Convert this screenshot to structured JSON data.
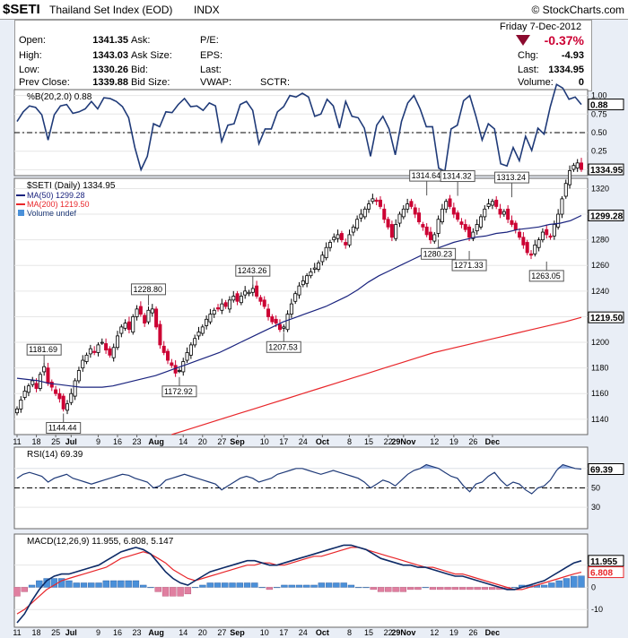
{
  "header": {
    "symbol": "$SETI",
    "name": "Thailand Set Index (EOD)",
    "exchange": "INDX",
    "watermark": "© StockCharts.com"
  },
  "quote": {
    "date": "Friday  7-Dec-2012",
    "pct_change": "-0.37%",
    "chg_label": "Chg:",
    "chg_value": "-4.93",
    "last_label": "Last:",
    "last_value": "1334.95",
    "volume_label": "Volume:",
    "volume_value": "0",
    "open_label": "Open:",
    "open_value": "1341.35",
    "high_label": "High:",
    "high_value": "1343.03",
    "low_label": "Low:",
    "low_value": "1330.26",
    "prev_label": "Prev Close:",
    "prev_value": "1339.88",
    "ask_label": "Ask:",
    "asksize_label": "Ask Size:",
    "bid_label": "Bid:",
    "bidsize_label": "Bid Size:",
    "pe_label": "P/E:",
    "eps_label": "EPS:",
    "last2_label": "Last:",
    "vwap_label": "VWAP:",
    "sctr_label": "SCTR:"
  },
  "colors": {
    "up": "#000000",
    "down": "#cc0033",
    "ma50": "#1a237e",
    "ma200": "#e8262a",
    "line": "#1f3a78",
    "bar": "#4a90d9",
    "negbar": "#e07fa0",
    "grid": "#e6e6e6"
  },
  "chart_data": [
    {
      "type": "line",
      "title": "%B(20,2.0) 0.88",
      "y_ticks": [
        "1.00",
        "0.75",
        "0.50",
        "0.25",
        "0.00"
      ],
      "tick_values": [
        1.0,
        0.75,
        0.5,
        0.25,
        0.0
      ],
      "last_label": "0.88",
      "ylim": [
        -0.08,
        1.08
      ],
      "series": [
        {
          "values": [
            0.65,
            0.78,
            0.86,
            0.84,
            0.74,
            0.4,
            0.74,
            0.86,
            0.88,
            0.76,
            0.78,
            0.82,
            0.92,
            0.82,
            0.97,
            0.96,
            0.92,
            0.85,
            0.7,
            0.3,
            0.0,
            0.18,
            0.62,
            0.58,
            0.78,
            0.77,
            0.88,
            0.96,
            0.85,
            0.86,
            0.8,
            0.9,
            0.86,
            0.38,
            0.6,
            0.62,
            0.88,
            0.92,
            0.8,
            0.35,
            0.55,
            0.55,
            0.78,
            0.85,
            1.0,
            0.98,
            1.03,
            0.98,
            0.72,
            0.75,
            0.95,
            0.86,
            0.56,
            0.92,
            0.72,
            0.7,
            0.56,
            0.18,
            0.6,
            0.72,
            0.55,
            0.2,
            0.65,
            0.9,
            1.0,
            0.82,
            0.58,
            0.58,
            0.02,
            -0.02,
            0.55,
            0.6,
            0.93,
            1.0,
            0.72,
            0.4,
            0.62,
            0.55,
            0.08,
            0.05,
            0.3,
            0.12,
            0.45,
            0.26,
            0.56,
            0.48,
            0.85,
            1.15,
            1.1,
            0.95,
            0.98,
            0.88
          ]
        }
      ]
    },
    {
      "type": "candlestick",
      "title": "$SETI (Daily) 1334.95",
      "legend": [
        "MA(50) 1299.28",
        "MA(200) 1219.50",
        "Volume undef"
      ],
      "y_ticks": [
        "1320",
        "1300",
        "1280",
        "1260",
        "1240",
        "1220",
        "1200",
        "1180",
        "1160",
        "1140"
      ],
      "tick_values": [
        1320,
        1300,
        1280,
        1260,
        1240,
        1220,
        1200,
        1180,
        1160,
        1140
      ],
      "ylim": [
        1128,
        1328
      ],
      "x_labels": [
        "11",
        "18",
        "25",
        "Jul",
        "9",
        "16",
        "23",
        "Aug",
        "14",
        "20",
        "27",
        "Sep",
        "10",
        "17",
        "24",
        "Oct",
        "8",
        "15",
        "22",
        "29Nov",
        "12",
        "19",
        "26",
        "Dec"
      ],
      "x_label_index": [
        0,
        5,
        10,
        14,
        21,
        26,
        31,
        36,
        43,
        48,
        53,
        57,
        64,
        69,
        74,
        79,
        86,
        91,
        96,
        100,
        108,
        113,
        118,
        123
      ],
      "last_labels": [
        "1334.95",
        "1299.28",
        "1219.50"
      ],
      "annotations": [
        {
          "text": "1181.69",
          "i": 7,
          "value": 1181.69
        },
        {
          "text": "1144.44",
          "i": 12,
          "value": 1144.44
        },
        {
          "text": "1228.80",
          "i": 34,
          "value": 1228.8
        },
        {
          "text": "1172.92",
          "i": 42,
          "value": 1172.92
        },
        {
          "text": "1243.26",
          "i": 61,
          "value": 1243.26
        },
        {
          "text": "1207.53",
          "i": 69,
          "value": 1207.53
        },
        {
          "text": "1314.64",
          "i": 106,
          "value": 1314.64
        },
        {
          "text": "1280.23",
          "i": 109,
          "value": 1280.23
        },
        {
          "text": "1314.32",
          "i": 114,
          "value": 1314.32
        },
        {
          "text": "1271.33",
          "i": 117,
          "value": 1271.33
        },
        {
          "text": "1313.24",
          "i": 128,
          "value": 1313.24
        },
        {
          "text": "1263.05",
          "i": 137,
          "value": 1263.05
        }
      ],
      "close": [
        1148,
        1155,
        1162,
        1166,
        1170,
        1164,
        1175,
        1181,
        1168,
        1165,
        1160,
        1156,
        1148,
        1152,
        1160,
        1170,
        1178,
        1186,
        1190,
        1195,
        1192,
        1198,
        1200,
        1194,
        1190,
        1196,
        1205,
        1212,
        1215,
        1210,
        1220,
        1226,
        1222,
        1215,
        1225,
        1226,
        1212,
        1198,
        1192,
        1186,
        1182,
        1176,
        1178,
        1185,
        1192,
        1198,
        1203,
        1208,
        1212,
        1218,
        1222,
        1225,
        1226,
        1230,
        1228,
        1233,
        1236,
        1232,
        1236,
        1240,
        1239,
        1242,
        1236,
        1232,
        1228,
        1220,
        1216,
        1215,
        1210,
        1212,
        1222,
        1230,
        1238,
        1244,
        1248,
        1252,
        1255,
        1258,
        1262,
        1268,
        1274,
        1278,
        1282,
        1284,
        1280,
        1276,
        1284,
        1290,
        1296,
        1300,
        1304,
        1308,
        1312,
        1310,
        1306,
        1296,
        1290,
        1282,
        1292,
        1300,
        1304,
        1308,
        1306,
        1300,
        1294,
        1290,
        1284,
        1280,
        1284,
        1296,
        1304,
        1310,
        1306,
        1300,
        1296,
        1292,
        1288,
        1282,
        1286,
        1292,
        1298,
        1304,
        1308,
        1310,
        1306,
        1300,
        1302,
        1296,
        1292,
        1288,
        1282,
        1276,
        1270,
        1268,
        1276,
        1280,
        1286,
        1284,
        1282,
        1292,
        1300,
        1312,
        1324,
        1334,
        1338,
        1340,
        1334.95
      ],
      "ma50": [
        1172,
        1171,
        1170,
        1168,
        1167,
        1166,
        1165,
        1165,
        1165,
        1166,
        1168,
        1170,
        1172,
        1174,
        1177,
        1180,
        1183,
        1186,
        1189,
        1192,
        1196,
        1200,
        1204,
        1208,
        1212,
        1216,
        1219,
        1222,
        1225,
        1228,
        1232,
        1236,
        1241,
        1247,
        1252,
        1256,
        1260,
        1264,
        1268,
        1272,
        1275,
        1278,
        1280,
        1282,
        1283,
        1285,
        1286,
        1288,
        1289,
        1290,
        1292,
        1293,
        1295,
        1299
      ],
      "ma200": [
        1128,
        1132,
        1136,
        1140,
        1144,
        1148,
        1152,
        1156,
        1160,
        1164,
        1168,
        1172,
        1176,
        1180,
        1184,
        1188,
        1192,
        1195,
        1198,
        1201,
        1204,
        1207,
        1210,
        1213,
        1216,
        1219.5
      ]
    },
    {
      "type": "line",
      "title": "RSI(14) 69.39",
      "y_ticks": [
        "70",
        "50",
        "30"
      ],
      "tick_values": [
        70,
        50,
        30
      ],
      "last_label": "69.39",
      "ylim": [
        8,
        92
      ],
      "series": [
        {
          "values": [
            60,
            64,
            66,
            64,
            62,
            56,
            60,
            62,
            64,
            60,
            58,
            56,
            54,
            56,
            58,
            60,
            62,
            64,
            63,
            60,
            58,
            56,
            50,
            52,
            58,
            60,
            62,
            64,
            62,
            60,
            58,
            56,
            54,
            48,
            52,
            56,
            60,
            62,
            60,
            56,
            58,
            60,
            64,
            66,
            68,
            70,
            70,
            68,
            66,
            64,
            66,
            68,
            66,
            64,
            62,
            60,
            56,
            50,
            54,
            58,
            56,
            52,
            58,
            64,
            68,
            70,
            74,
            72,
            70,
            66,
            62,
            60,
            52,
            46,
            54,
            56,
            62,
            66,
            58,
            52,
            56,
            54,
            48,
            44,
            50,
            52,
            58,
            68,
            74,
            72,
            70,
            69.39
          ]
        }
      ]
    },
    {
      "type": "line",
      "title": "MACD(12,26,9) 11.955, 6.808, 5.147",
      "y_ticks": [
        "10",
        "0",
        "-10"
      ],
      "tick_values": [
        10,
        0,
        -10
      ],
      "last_labels": [
        "11.955",
        "6.808"
      ],
      "ylim": [
        -18,
        24
      ],
      "series": [
        {
          "name": "MACD",
          "values": [
            -16,
            -12,
            -6,
            -1,
            3,
            5,
            6,
            6,
            7,
            8,
            9,
            10,
            12,
            14,
            16,
            17,
            18,
            17,
            15,
            11,
            7,
            4,
            2,
            1,
            3,
            5,
            7,
            8,
            9,
            10,
            11,
            12,
            12,
            11,
            10,
            10,
            11,
            12,
            13,
            14,
            15,
            16,
            17,
            18,
            19,
            19,
            18,
            17,
            15,
            13,
            12,
            11,
            10,
            10,
            9,
            9,
            8,
            7,
            6,
            5,
            5,
            4,
            3,
            2,
            1,
            0,
            -1,
            -1,
            0,
            1,
            2,
            3,
            5,
            7,
            9,
            11,
            11.955
          ]
        },
        {
          "name": "Signal",
          "values": [
            -12,
            -10,
            -7,
            -4,
            -1,
            1,
            3,
            4,
            5,
            6,
            7,
            8,
            9,
            11,
            13,
            14,
            15,
            16,
            15,
            13,
            11,
            8,
            6,
            4,
            3,
            4,
            5,
            6,
            7,
            8,
            9,
            10,
            10,
            11,
            11,
            10,
            10,
            11,
            12,
            13,
            14,
            14,
            15,
            16,
            17,
            18,
            18,
            17,
            16,
            15,
            14,
            13,
            12,
            11,
            10,
            9,
            9,
            8,
            7,
            6,
            6,
            5,
            4,
            3,
            2,
            1,
            0,
            -1,
            -1,
            0,
            1,
            2,
            3,
            4,
            5,
            6,
            6.808
          ]
        }
      ],
      "histogram": [
        -4,
        -2,
        1,
        3,
        4,
        4,
        4,
        3,
        2,
        2,
        2,
        2,
        3,
        3,
        3,
        3,
        3,
        1,
        0,
        -2,
        -4,
        -4,
        -4,
        -3,
        0,
        1,
        2,
        2,
        2,
        2,
        2,
        2,
        2,
        0,
        -1,
        0,
        1,
        1,
        1,
        1,
        1,
        2,
        2,
        2,
        2,
        1,
        0,
        0,
        -1,
        -2,
        -2,
        -2,
        -2,
        -1,
        -1,
        0,
        -1,
        -1,
        -1,
        -1,
        -1,
        -1,
        -1,
        -1,
        -1,
        -1,
        -1,
        0,
        1,
        1,
        1,
        1,
        2,
        3,
        4,
        5,
        5.147
      ]
    }
  ]
}
